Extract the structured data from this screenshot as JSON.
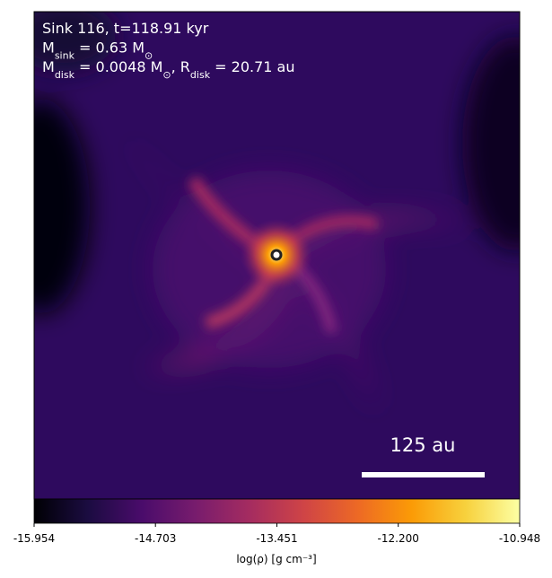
{
  "chart_data": {
    "type": "image",
    "annotations": [
      {
        "parts": [
          {
            "text": "Sink 116, t=118.91 kyr"
          }
        ]
      },
      {
        "parts": [
          {
            "text": "M"
          },
          {
            "text": "sink",
            "sub": true
          },
          {
            "text": " = 0.63 M"
          },
          {
            "text": "⊙",
            "sub": true
          }
        ]
      },
      {
        "parts": [
          {
            "text": "M"
          },
          {
            "text": "disk",
            "sub": true
          },
          {
            "text": " = 0.0048 M"
          },
          {
            "text": "⊙",
            "sub": true
          },
          {
            "text": ", R"
          },
          {
            "text": "disk",
            "sub": true
          },
          {
            "text": " = 20.71 au"
          }
        ]
      }
    ],
    "scalebar_label": "125 au",
    "colorbar": {
      "label": "log(ρ) [g cm⁻³]",
      "clim": [
        -15.954,
        -10.948
      ],
      "ticks": [
        -15.954,
        -14.703,
        -13.451,
        {
          "value": -12.2,
          "label": "-12.200"
        },
        -10.948
      ],
      "colors": [
        "#000004",
        "#1b0c41",
        "#4a0c6b",
        "#781c6d",
        "#a52c60",
        "#cf4446",
        "#ed6925",
        "#fb9b06",
        "#f7d13d",
        "#fcffa4"
      ]
    }
  }
}
